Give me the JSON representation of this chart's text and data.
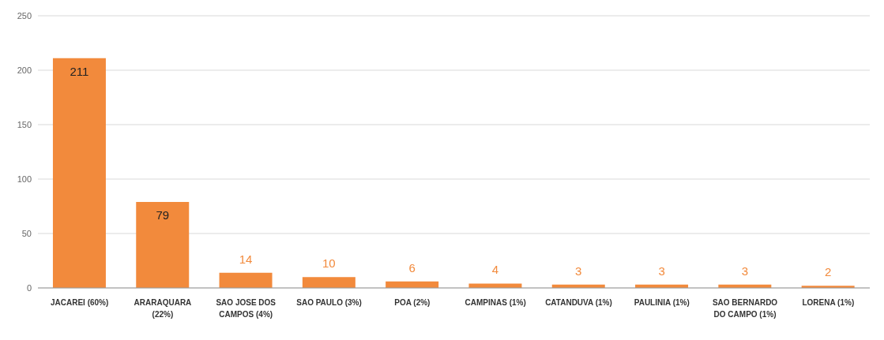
{
  "chart_data": {
    "type": "bar",
    "categories": [
      "JACAREI (60%)",
      "ARARAQUARA (22%)",
      "SAO JOSE DOS CAMPOS (4%)",
      "SAO PAULO (3%)",
      "POA (2%)",
      "CAMPINAS (1%)",
      "CATANDUVA (1%)",
      "PAULINIA (1%)",
      "SAO BERNARDO DO CAMPO (1%)",
      "LORENA (1%)"
    ],
    "values": [
      211,
      79,
      14,
      10,
      6,
      4,
      3,
      3,
      3,
      2
    ],
    "color": "#f28a3c",
    "ylim": [
      0,
      250
    ],
    "yticks": [
      0,
      50,
      100,
      150,
      200,
      250
    ],
    "grid": "y",
    "data_labels": true
  }
}
